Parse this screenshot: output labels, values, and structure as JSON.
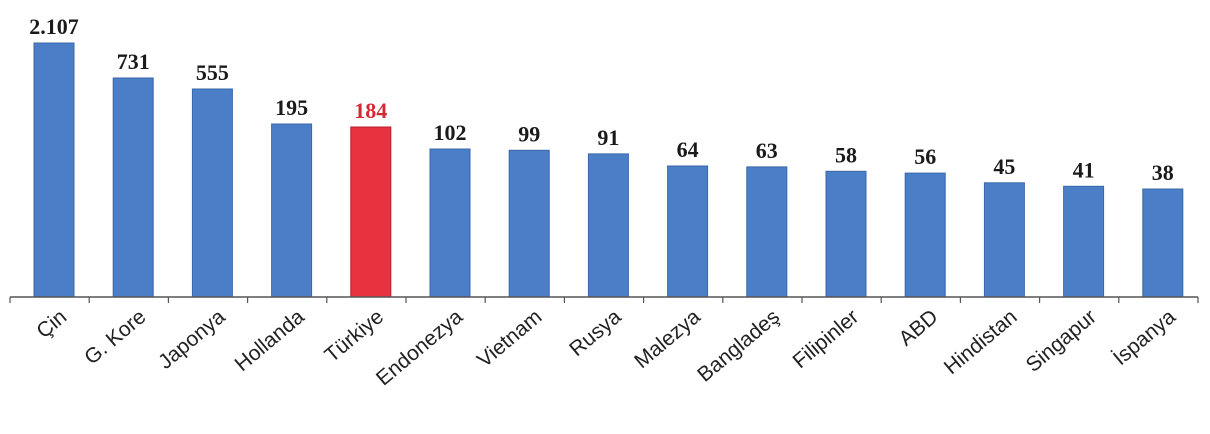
{
  "chart_data": {
    "type": "bar",
    "categories": [
      "Çin",
      "G. Kore",
      "Japonya",
      "Hollanda",
      "Türkiye",
      "Endonezya",
      "Vietnam",
      "Rusya",
      "Malezya",
      "Bangladeş",
      "Filipinler",
      "ABD",
      "Hindistan",
      "Singapur",
      "İspanya"
    ],
    "values": [
      2107,
      731,
      555,
      195,
      184,
      102,
      99,
      91,
      64,
      63,
      58,
      56,
      45,
      41,
      38
    ],
    "value_labels": [
      "2.107",
      "731",
      "555",
      "195",
      "184",
      "102",
      "99",
      "91",
      "64",
      "63",
      "58",
      "56",
      "45",
      "41",
      "38"
    ],
    "highlight_category": "Türkiye",
    "colors": {
      "bar": "#4a7fc8",
      "bar_edge": "#3a67a8",
      "highlight": "#e8323f",
      "highlight_edge": "#b81f2b",
      "label": "#1a1a1a",
      "highlight_label": "#d42a35",
      "axis": "#555555"
    },
    "scale": "non-linear (broken scale)",
    "title": "",
    "xlabel": "",
    "ylabel": "",
    "grid": false,
    "legend": "none"
  }
}
